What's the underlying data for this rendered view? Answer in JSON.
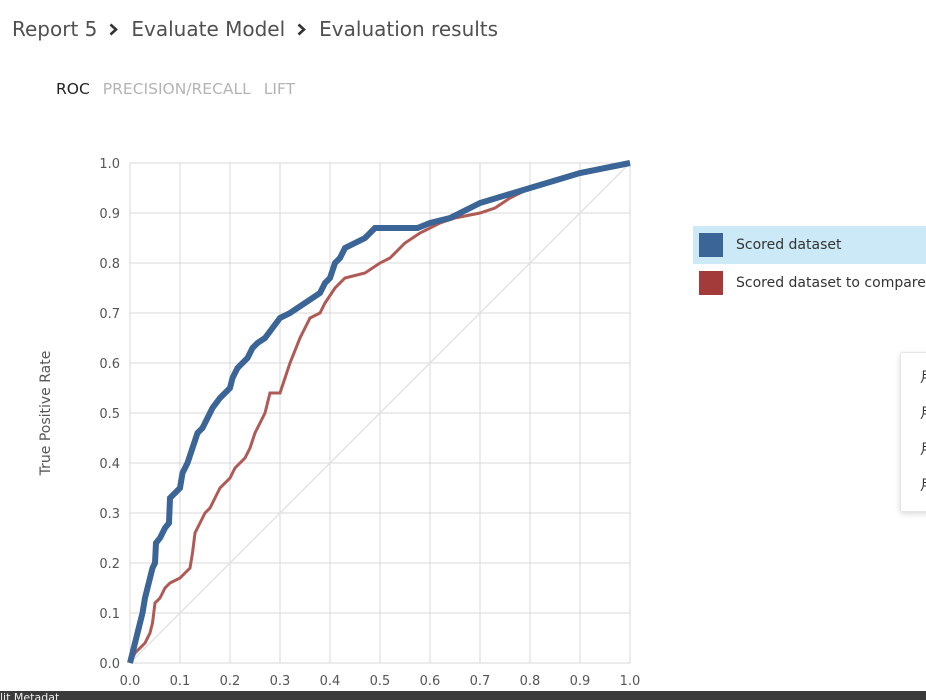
{
  "breadcrumb": {
    "items": [
      "Report 5",
      "Evaluate Model",
      "Evaluation results"
    ]
  },
  "tabs": [
    "ROC",
    "PRECISION/RECALL",
    "LIFT"
  ],
  "active_tab": 0,
  "legend": [
    {
      "label": "Scored dataset",
      "color": "#3b6497",
      "selected": true
    },
    {
      "label": "Scored dataset to compare",
      "color": "#a23b3a",
      "selected": false
    }
  ],
  "side_panel": {
    "glyphs": [
      "月",
      "月",
      "月",
      "月"
    ]
  },
  "bottom_strip": {
    "text": "lit Metadat"
  },
  "colors": {
    "scored": "#3b6497",
    "compare": "#b05a56",
    "diagonal": "#e3e3e3",
    "grid": "#d9d9d9",
    "legend_selected_bg": "#cbe9f7"
  },
  "chart_data": {
    "type": "line",
    "title": "",
    "xlabel": "",
    "ylabel": "True Positive Rate",
    "xlim": [
      0,
      1
    ],
    "ylim": [
      0,
      1
    ],
    "x_ticks": [
      "0.0",
      "0.1",
      "0.2",
      "0.3",
      "0.4",
      "0.5",
      "0.6",
      "0.7",
      "0.8",
      "0.9",
      "1.0"
    ],
    "y_ticks": [
      "0.0",
      "0.1",
      "0.2",
      "0.3",
      "0.4",
      "0.5",
      "0.6",
      "0.7",
      "0.8",
      "0.9",
      "1.0"
    ],
    "grid": true,
    "reference_line": [
      [
        0,
        0
      ],
      [
        1,
        1
      ]
    ],
    "series": [
      {
        "name": "Scored dataset",
        "points": [
          [
            0.0,
            0.0
          ],
          [
            0.005,
            0.02
          ],
          [
            0.01,
            0.04
          ],
          [
            0.015,
            0.06
          ],
          [
            0.02,
            0.08
          ],
          [
            0.025,
            0.1
          ],
          [
            0.03,
            0.13
          ],
          [
            0.035,
            0.15
          ],
          [
            0.04,
            0.17
          ],
          [
            0.045,
            0.19
          ],
          [
            0.05,
            0.2
          ],
          [
            0.052,
            0.24
          ],
          [
            0.06,
            0.25
          ],
          [
            0.07,
            0.27
          ],
          [
            0.078,
            0.28
          ],
          [
            0.08,
            0.33
          ],
          [
            0.09,
            0.34
          ],
          [
            0.1,
            0.35
          ],
          [
            0.105,
            0.38
          ],
          [
            0.115,
            0.4
          ],
          [
            0.125,
            0.43
          ],
          [
            0.135,
            0.46
          ],
          [
            0.145,
            0.47
          ],
          [
            0.155,
            0.49
          ],
          [
            0.165,
            0.51
          ],
          [
            0.18,
            0.53
          ],
          [
            0.19,
            0.54
          ],
          [
            0.2,
            0.55
          ],
          [
            0.205,
            0.57
          ],
          [
            0.215,
            0.59
          ],
          [
            0.225,
            0.6
          ],
          [
            0.235,
            0.61
          ],
          [
            0.245,
            0.63
          ],
          [
            0.255,
            0.64
          ],
          [
            0.27,
            0.65
          ],
          [
            0.285,
            0.67
          ],
          [
            0.3,
            0.69
          ],
          [
            0.32,
            0.7
          ],
          [
            0.335,
            0.71
          ],
          [
            0.35,
            0.72
          ],
          [
            0.365,
            0.73
          ],
          [
            0.38,
            0.74
          ],
          [
            0.39,
            0.76
          ],
          [
            0.4,
            0.77
          ],
          [
            0.41,
            0.8
          ],
          [
            0.42,
            0.81
          ],
          [
            0.43,
            0.83
          ],
          [
            0.45,
            0.84
          ],
          [
            0.47,
            0.85
          ],
          [
            0.48,
            0.86
          ],
          [
            0.49,
            0.87
          ],
          [
            0.5,
            0.87
          ],
          [
            0.575,
            0.87
          ],
          [
            0.6,
            0.88
          ],
          [
            0.64,
            0.89
          ],
          [
            0.7,
            0.92
          ],
          [
            0.8,
            0.95
          ],
          [
            0.9,
            0.98
          ],
          [
            1.0,
            1.0
          ]
        ]
      },
      {
        "name": "Scored dataset to compare",
        "points": [
          [
            0.0,
            0.0
          ],
          [
            0.005,
            0.01
          ],
          [
            0.01,
            0.02
          ],
          [
            0.02,
            0.03
          ],
          [
            0.03,
            0.04
          ],
          [
            0.04,
            0.06
          ],
          [
            0.045,
            0.08
          ],
          [
            0.05,
            0.12
          ],
          [
            0.06,
            0.13
          ],
          [
            0.07,
            0.15
          ],
          [
            0.08,
            0.16
          ],
          [
            0.1,
            0.17
          ],
          [
            0.11,
            0.18
          ],
          [
            0.12,
            0.19
          ],
          [
            0.125,
            0.22
          ],
          [
            0.13,
            0.26
          ],
          [
            0.14,
            0.28
          ],
          [
            0.15,
            0.3
          ],
          [
            0.16,
            0.31
          ],
          [
            0.17,
            0.33
          ],
          [
            0.18,
            0.35
          ],
          [
            0.2,
            0.37
          ],
          [
            0.21,
            0.39
          ],
          [
            0.23,
            0.41
          ],
          [
            0.24,
            0.43
          ],
          [
            0.25,
            0.46
          ],
          [
            0.26,
            0.48
          ],
          [
            0.27,
            0.5
          ],
          [
            0.28,
            0.54
          ],
          [
            0.3,
            0.54
          ],
          [
            0.32,
            0.6
          ],
          [
            0.34,
            0.65
          ],
          [
            0.36,
            0.69
          ],
          [
            0.38,
            0.7
          ],
          [
            0.39,
            0.72
          ],
          [
            0.41,
            0.75
          ],
          [
            0.43,
            0.77
          ],
          [
            0.47,
            0.78
          ],
          [
            0.5,
            0.8
          ],
          [
            0.52,
            0.81
          ],
          [
            0.55,
            0.84
          ],
          [
            0.58,
            0.86
          ],
          [
            0.62,
            0.88
          ],
          [
            0.65,
            0.89
          ],
          [
            0.7,
            0.9
          ],
          [
            0.73,
            0.91
          ],
          [
            0.76,
            0.93
          ],
          [
            0.8,
            0.95
          ],
          [
            0.86,
            0.97
          ],
          [
            0.9,
            0.98
          ],
          [
            0.95,
            0.99
          ],
          [
            1.0,
            1.0
          ]
        ]
      }
    ]
  }
}
